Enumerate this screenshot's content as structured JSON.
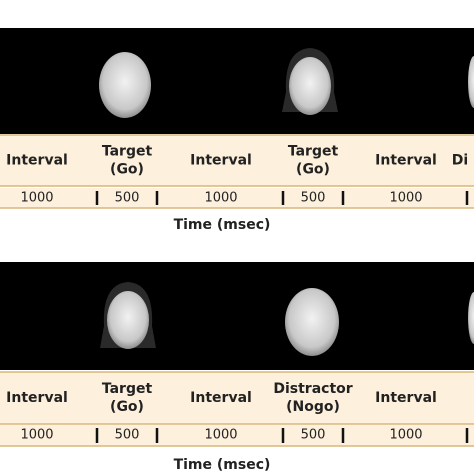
{
  "panels": [
    {
      "labels": [
        [
          "Interval"
        ],
        [
          "Target",
          "(Go)"
        ],
        [
          "Interval"
        ],
        [
          "Target",
          "(Go)"
        ],
        [
          "Interval"
        ],
        [
          "Di"
        ]
      ],
      "durations": [
        1000,
        500,
        1000,
        500,
        1000
      ],
      "axis_label": "Time (msec)"
    },
    {
      "labels": [
        [
          "Interval"
        ],
        [
          "Target",
          "(Go)"
        ],
        [
          "Interval"
        ],
        [
          "Distractor",
          "(Nogo)"
        ],
        [
          "Interval"
        ]
      ],
      "durations": [
        1000,
        500,
        1000,
        500,
        1000
      ],
      "axis_label": "Time (msec)"
    }
  ]
}
